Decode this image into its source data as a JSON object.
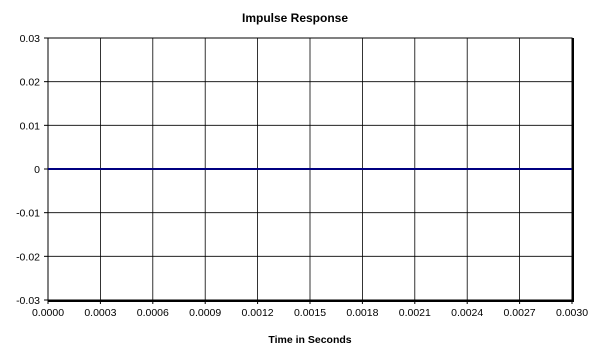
{
  "chart_data": {
    "type": "line",
    "title": "Impulse Response",
    "xlabel": "Time in Seconds",
    "ylabel": "",
    "xlim": [
      0.0,
      0.003
    ],
    "ylim": [
      -0.03,
      0.03
    ],
    "x_ticks": [
      "0.0000",
      "0.0003",
      "0.0006",
      "0.0009",
      "0.0012",
      "0.0015",
      "0.0018",
      "0.0021",
      "0.0024",
      "0.0027",
      "0.0030"
    ],
    "y_ticks": [
      "0.03",
      "0.02",
      "0.01",
      "0",
      "-0.01",
      "-0.02",
      "-0.03"
    ],
    "grid": true,
    "legend": "none",
    "series": [
      {
        "color": "#000080",
        "x": [
          0.0,
          0.0003,
          0.0006,
          0.0009,
          0.0012,
          0.0015,
          0.0018,
          0.0021,
          0.0024,
          0.0027,
          0.003
        ],
        "y": [
          0,
          0,
          0,
          0,
          0,
          0,
          0,
          0,
          0,
          0,
          0
        ]
      }
    ]
  }
}
